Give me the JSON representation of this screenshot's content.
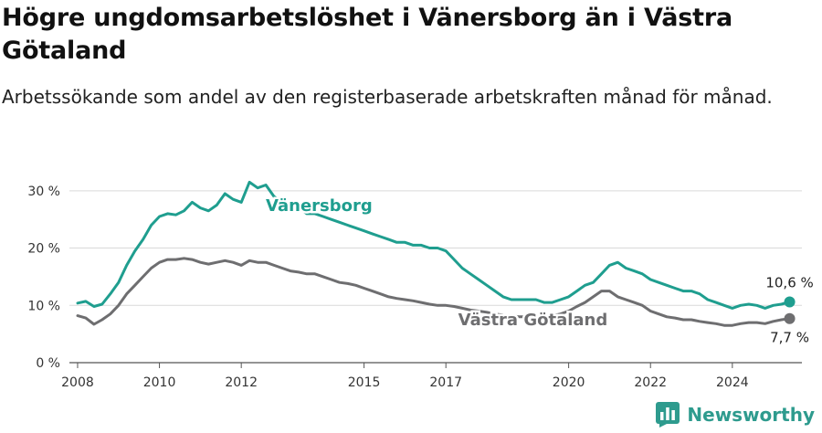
{
  "title": "Högre ungdomsarbetslöshet i Vänersborg än i Västra Götaland",
  "subtitle": "Arbetssökande som andel av den registerbaserade arbetskraften månad för månad.",
  "brand": {
    "name": "Newsworthy",
    "icon": "bar-chart-logo-icon"
  },
  "chart_data": {
    "type": "line",
    "ylim": [
      0,
      33
    ],
    "xlim": [
      2007.8,
      2025.7
    ],
    "yticks": [
      {
        "value": 0,
        "label": "0 %"
      },
      {
        "value": 10,
        "label": "10 %"
      },
      {
        "value": 20,
        "label": "20 %"
      },
      {
        "value": 30,
        "label": "30 %"
      }
    ],
    "xticks": [
      {
        "value": 2008,
        "label": "2008"
      },
      {
        "value": 2010,
        "label": "2010"
      },
      {
        "value": 2012,
        "label": "2012"
      },
      {
        "value": 2015,
        "label": "2015"
      },
      {
        "value": 2017,
        "label": "2017"
      },
      {
        "value": 2020,
        "label": "2020"
      },
      {
        "value": 2022,
        "label": "2022"
      },
      {
        "value": 2024,
        "label": "2024"
      }
    ],
    "grid": true,
    "series": [
      {
        "name": "Vänersborg",
        "color": "#1f9e8f",
        "end_label": "10,6 %",
        "points": [
          [
            2008.0,
            10.4
          ],
          [
            2008.2,
            10.7
          ],
          [
            2008.4,
            9.8
          ],
          [
            2008.6,
            10.2
          ],
          [
            2008.8,
            12.0
          ],
          [
            2009.0,
            14.0
          ],
          [
            2009.2,
            17.0
          ],
          [
            2009.4,
            19.5
          ],
          [
            2009.6,
            21.5
          ],
          [
            2009.8,
            24.0
          ],
          [
            2010.0,
            25.5
          ],
          [
            2010.2,
            26.0
          ],
          [
            2010.4,
            25.8
          ],
          [
            2010.6,
            26.5
          ],
          [
            2010.8,
            28.0
          ],
          [
            2011.0,
            27.0
          ],
          [
            2011.2,
            26.5
          ],
          [
            2011.4,
            27.5
          ],
          [
            2011.6,
            29.5
          ],
          [
            2011.8,
            28.5
          ],
          [
            2012.0,
            28.0
          ],
          [
            2012.2,
            31.5
          ],
          [
            2012.4,
            30.5
          ],
          [
            2012.6,
            31.0
          ],
          [
            2012.8,
            29.0
          ],
          [
            2013.0,
            28.0
          ],
          [
            2013.2,
            27.5
          ],
          [
            2013.4,
            27.0
          ],
          [
            2013.6,
            26.0
          ],
          [
            2013.8,
            26.0
          ],
          [
            2014.0,
            25.5
          ],
          [
            2014.2,
            25.0
          ],
          [
            2014.4,
            24.5
          ],
          [
            2014.6,
            24.0
          ],
          [
            2014.8,
            23.5
          ],
          [
            2015.0,
            23.0
          ],
          [
            2015.2,
            22.5
          ],
          [
            2015.4,
            22.0
          ],
          [
            2015.6,
            21.5
          ],
          [
            2015.8,
            21.0
          ],
          [
            2016.0,
            21.0
          ],
          [
            2016.2,
            20.5
          ],
          [
            2016.4,
            20.5
          ],
          [
            2016.6,
            20.0
          ],
          [
            2016.8,
            20.0
          ],
          [
            2017.0,
            19.5
          ],
          [
            2017.2,
            18.0
          ],
          [
            2017.4,
            16.5
          ],
          [
            2017.6,
            15.5
          ],
          [
            2017.8,
            14.5
          ],
          [
            2018.0,
            13.5
          ],
          [
            2018.2,
            12.5
          ],
          [
            2018.4,
            11.5
          ],
          [
            2018.6,
            11.0
          ],
          [
            2018.8,
            11.0
          ],
          [
            2019.0,
            11.0
          ],
          [
            2019.2,
            11.0
          ],
          [
            2019.4,
            10.5
          ],
          [
            2019.6,
            10.5
          ],
          [
            2019.8,
            11.0
          ],
          [
            2020.0,
            11.5
          ],
          [
            2020.2,
            12.5
          ],
          [
            2020.4,
            13.5
          ],
          [
            2020.6,
            14.0
          ],
          [
            2020.8,
            15.5
          ],
          [
            2021.0,
            17.0
          ],
          [
            2021.2,
            17.5
          ],
          [
            2021.4,
            16.5
          ],
          [
            2021.6,
            16.0
          ],
          [
            2021.8,
            15.5
          ],
          [
            2022.0,
            14.5
          ],
          [
            2022.2,
            14.0
          ],
          [
            2022.4,
            13.5
          ],
          [
            2022.6,
            13.0
          ],
          [
            2022.8,
            12.5
          ],
          [
            2023.0,
            12.5
          ],
          [
            2023.2,
            12.0
          ],
          [
            2023.4,
            11.0
          ],
          [
            2023.6,
            10.5
          ],
          [
            2023.8,
            10.0
          ],
          [
            2024.0,
            9.5
          ],
          [
            2024.2,
            10.0
          ],
          [
            2024.4,
            10.2
          ],
          [
            2024.6,
            10.0
          ],
          [
            2024.8,
            9.5
          ],
          [
            2025.0,
            10.0
          ],
          [
            2025.2,
            10.2
          ],
          [
            2025.4,
            10.6
          ]
        ]
      },
      {
        "name": "Västra Götaland",
        "color": "#6e6e70",
        "end_label": "7,7 %",
        "points": [
          [
            2008.0,
            8.2
          ],
          [
            2008.2,
            7.8
          ],
          [
            2008.4,
            6.7
          ],
          [
            2008.6,
            7.5
          ],
          [
            2008.8,
            8.5
          ],
          [
            2009.0,
            10.0
          ],
          [
            2009.2,
            12.0
          ],
          [
            2009.4,
            13.5
          ],
          [
            2009.6,
            15.0
          ],
          [
            2009.8,
            16.5
          ],
          [
            2010.0,
            17.5
          ],
          [
            2010.2,
            18.0
          ],
          [
            2010.4,
            18.0
          ],
          [
            2010.6,
            18.2
          ],
          [
            2010.8,
            18.0
          ],
          [
            2011.0,
            17.5
          ],
          [
            2011.2,
            17.2
          ],
          [
            2011.4,
            17.5
          ],
          [
            2011.6,
            17.8
          ],
          [
            2011.8,
            17.5
          ],
          [
            2012.0,
            17.0
          ],
          [
            2012.2,
            17.8
          ],
          [
            2012.4,
            17.5
          ],
          [
            2012.6,
            17.5
          ],
          [
            2012.8,
            17.0
          ],
          [
            2013.0,
            16.5
          ],
          [
            2013.2,
            16.0
          ],
          [
            2013.4,
            15.8
          ],
          [
            2013.6,
            15.5
          ],
          [
            2013.8,
            15.5
          ],
          [
            2014.0,
            15.0
          ],
          [
            2014.2,
            14.5
          ],
          [
            2014.4,
            14.0
          ],
          [
            2014.6,
            13.8
          ],
          [
            2014.8,
            13.5
          ],
          [
            2015.0,
            13.0
          ],
          [
            2015.2,
            12.5
          ],
          [
            2015.4,
            12.0
          ],
          [
            2015.6,
            11.5
          ],
          [
            2015.8,
            11.2
          ],
          [
            2016.0,
            11.0
          ],
          [
            2016.2,
            10.8
          ],
          [
            2016.4,
            10.5
          ],
          [
            2016.6,
            10.2
          ],
          [
            2016.8,
            10.0
          ],
          [
            2017.0,
            10.0
          ],
          [
            2017.2,
            9.8
          ],
          [
            2017.4,
            9.5
          ],
          [
            2017.6,
            9.2
          ],
          [
            2017.8,
            9.0
          ],
          [
            2018.0,
            8.8
          ],
          [
            2018.2,
            8.5
          ],
          [
            2018.4,
            8.3
          ],
          [
            2018.6,
            8.2
          ],
          [
            2018.8,
            8.0
          ],
          [
            2019.0,
            8.0
          ],
          [
            2019.2,
            8.0
          ],
          [
            2019.4,
            8.0
          ],
          [
            2019.6,
            8.2
          ],
          [
            2019.8,
            8.5
          ],
          [
            2020.0,
            9.0
          ],
          [
            2020.2,
            9.8
          ],
          [
            2020.4,
            10.5
          ],
          [
            2020.6,
            11.5
          ],
          [
            2020.8,
            12.5
          ],
          [
            2021.0,
            12.5
          ],
          [
            2021.2,
            11.5
          ],
          [
            2021.4,
            11.0
          ],
          [
            2021.6,
            10.5
          ],
          [
            2021.8,
            10.0
          ],
          [
            2022.0,
            9.0
          ],
          [
            2022.2,
            8.5
          ],
          [
            2022.4,
            8.0
          ],
          [
            2022.6,
            7.8
          ],
          [
            2022.8,
            7.5
          ],
          [
            2023.0,
            7.5
          ],
          [
            2023.2,
            7.2
          ],
          [
            2023.4,
            7.0
          ],
          [
            2023.6,
            6.8
          ],
          [
            2023.8,
            6.5
          ],
          [
            2024.0,
            6.5
          ],
          [
            2024.2,
            6.8
          ],
          [
            2024.4,
            7.0
          ],
          [
            2024.6,
            7.0
          ],
          [
            2024.8,
            6.8
          ],
          [
            2025.0,
            7.2
          ],
          [
            2025.2,
            7.5
          ],
          [
            2025.4,
            7.7
          ]
        ]
      }
    ]
  }
}
